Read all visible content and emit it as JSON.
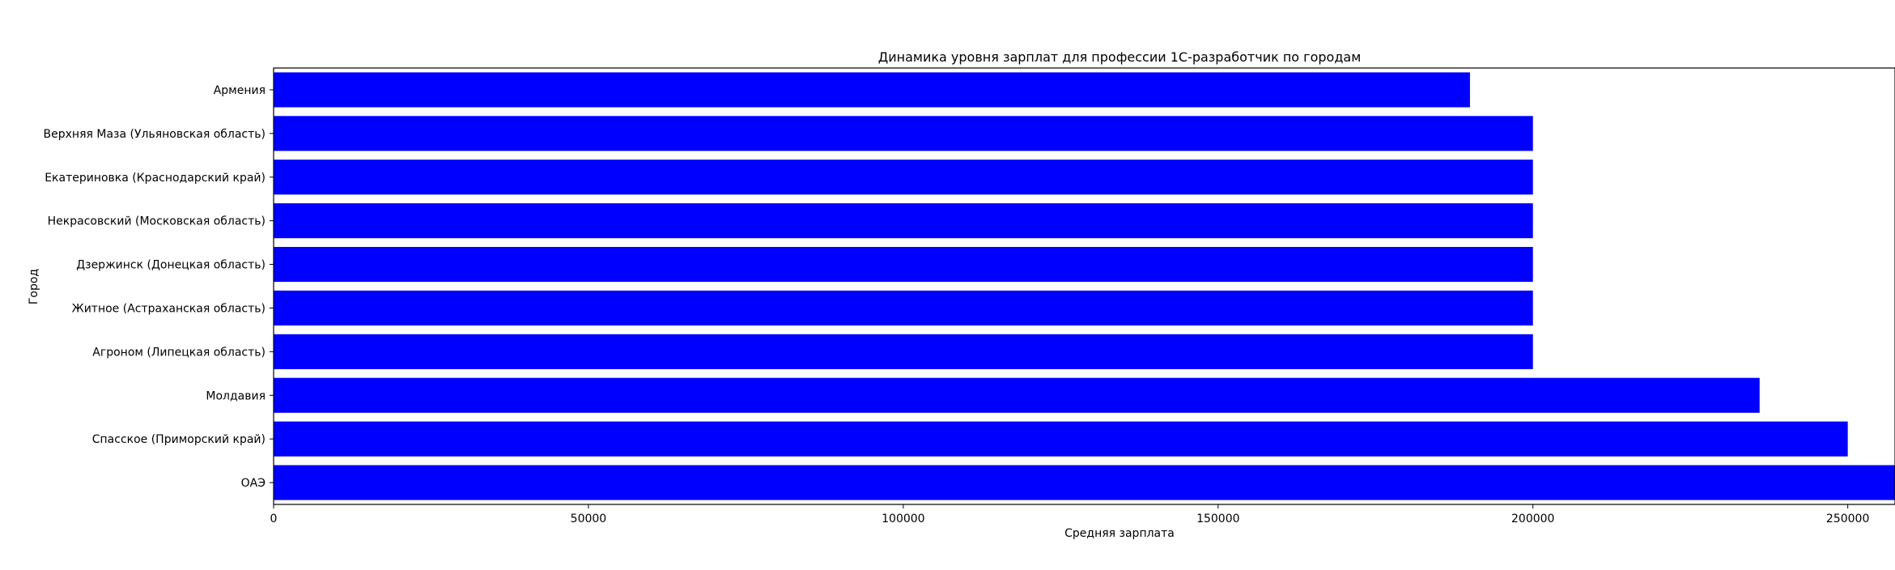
{
  "chart_data": {
    "type": "bar",
    "orientation": "horizontal",
    "title": "Динамика уровня зарплат для профессии 1С-разработчик по городам",
    "xlabel": "Средняя зарплата",
    "ylabel": "Город",
    "categories": [
      "Армения",
      "Верхняя Маза (Ульяновская область)",
      "Екатериновка (Краснодарский край)",
      "Некрасовский (Московская область)",
      "Дзержинск (Донецкая область)",
      "Житное (Астраханская область)",
      "Агроном (Липецкая область)",
      "Молдавия",
      "Спасское (Приморский край)",
      "ОАЭ"
    ],
    "values": [
      190000,
      200000,
      200000,
      200000,
      200000,
      200000,
      200000,
      236000,
      250000,
      257500
    ],
    "xlim": [
      0,
      257500
    ],
    "xticks": [
      0,
      50000,
      100000,
      150000,
      200000,
      250000
    ],
    "xtick_labels": [
      "0",
      "50000",
      "100000",
      "150000",
      "200000",
      "250000"
    ],
    "bar_color": "#0000ff",
    "grid": false,
    "legend": "none"
  }
}
